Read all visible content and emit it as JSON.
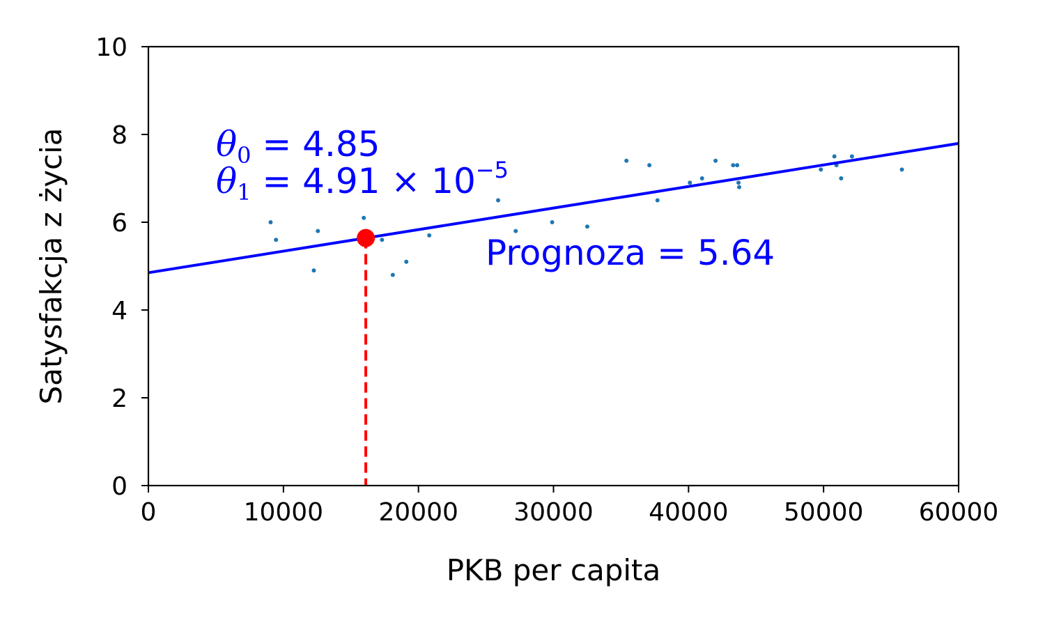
{
  "chart_data": {
    "type": "scatter",
    "xlabel": "PKB per capita",
    "ylabel": "Satysfakcja z życia",
    "xlim": [
      0,
      60000
    ],
    "ylim": [
      0,
      10
    ],
    "x_ticks": [
      "0",
      "10000",
      "20000",
      "30000",
      "40000",
      "50000",
      "60000"
    ],
    "y_ticks": [
      "0",
      "2",
      "4",
      "6",
      "8",
      "10"
    ],
    "grid": false,
    "points": [
      {
        "x": 9050,
        "y": 6.0
      },
      {
        "x": 9450,
        "y": 5.6
      },
      {
        "x": 12250,
        "y": 4.9
      },
      {
        "x": 12550,
        "y": 5.8
      },
      {
        "x": 15950,
        "y": 6.1
      },
      {
        "x": 17300,
        "y": 5.6
      },
      {
        "x": 18100,
        "y": 4.8
      },
      {
        "x": 19100,
        "y": 5.1
      },
      {
        "x": 20800,
        "y": 5.7
      },
      {
        "x": 25900,
        "y": 6.5
      },
      {
        "x": 27200,
        "y": 5.8
      },
      {
        "x": 29900,
        "y": 6.0
      },
      {
        "x": 32500,
        "y": 5.9
      },
      {
        "x": 35400,
        "y": 7.4
      },
      {
        "x": 37100,
        "y": 7.3
      },
      {
        "x": 37700,
        "y": 6.5
      },
      {
        "x": 40100,
        "y": 6.9
      },
      {
        "x": 41000,
        "y": 7.0
      },
      {
        "x": 42000,
        "y": 7.4
      },
      {
        "x": 43300,
        "y": 7.3
      },
      {
        "x": 43600,
        "y": 7.3
      },
      {
        "x": 43700,
        "y": 6.9
      },
      {
        "x": 43750,
        "y": 6.8
      },
      {
        "x": 49800,
        "y": 7.2
      },
      {
        "x": 50800,
        "y": 7.5
      },
      {
        "x": 50950,
        "y": 7.3
      },
      {
        "x": 51300,
        "y": 7.0
      },
      {
        "x": 52100,
        "y": 7.5
      },
      {
        "x": 55800,
        "y": 7.2
      }
    ],
    "model": {
      "theta0": 4.85,
      "theta1": 4.91e-05,
      "line_color": "#0000ff",
      "x_range": [
        0,
        60000
      ]
    },
    "prediction": {
      "x": 16100,
      "y": 5.64,
      "color": "#ff0000"
    },
    "point_color": "#1f77b4",
    "annotations": {
      "theta0_symbol": "θ",
      "theta0_sub": "0",
      "theta0_rest": " = 4.85",
      "theta1_symbol": "θ",
      "theta1_sub": "1",
      "theta1_rest": " = 4.91 × 10",
      "theta1_exp": "−5",
      "prediction_label": "Prognoza = 5.64",
      "color": "#0000ff"
    }
  }
}
